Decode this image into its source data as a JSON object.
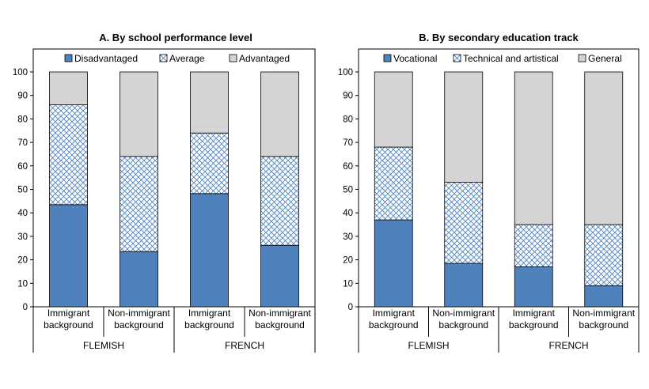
{
  "colors": {
    "vocational_or_disadvantaged": "#4f81bd",
    "pattern_blue": "#4f81bd",
    "grey": "#d4d4d4",
    "frame": "#000000"
  },
  "chart_data": [
    {
      "type": "bar",
      "stacked": true,
      "title": "A. By school performance level",
      "ylim": [
        0,
        100
      ],
      "yticks": [
        "0",
        "10",
        "20",
        "30",
        "40",
        "50",
        "60",
        "70",
        "80",
        "90",
        "100"
      ],
      "legend_position": "top-inside",
      "categories": [
        "Immigrant background",
        "Non-immigrant background",
        "Immigrant background",
        "Non-immigrant background"
      ],
      "category_lines": [
        [
          "Immigrant",
          "background"
        ],
        [
          "Non-immigrant",
          "background"
        ],
        [
          "Immigrant",
          "background"
        ],
        [
          "Non-immigrant",
          "background"
        ]
      ],
      "groups": [
        "FLEMISH",
        "FRENCH"
      ],
      "series": [
        {
          "name": "Disadvantaged",
          "fill": "solid",
          "values": [
            43.5,
            23.5,
            48.2,
            26.2
          ]
        },
        {
          "name": "Average",
          "fill": "pattern",
          "values": [
            42.5,
            40.5,
            25.8,
            37.8
          ]
        },
        {
          "name": "Advantaged",
          "fill": "grey",
          "values": [
            14.0,
            36.0,
            26.0,
            36.0
          ]
        }
      ]
    },
    {
      "type": "bar",
      "stacked": true,
      "title": "B. By secondary education track",
      "ylim": [
        0,
        100
      ],
      "yticks": [
        "0",
        "10",
        "20",
        "30",
        "40",
        "50",
        "60",
        "70",
        "80",
        "90",
        "100"
      ],
      "legend_position": "top-inside",
      "categories": [
        "Immigrant background",
        "Non-immigrant background",
        "Immigrant background",
        "Non-immigrant background"
      ],
      "category_lines": [
        [
          "Immigrant",
          "background"
        ],
        [
          "Non-immigrant",
          "background"
        ],
        [
          "Immigrant",
          "background"
        ],
        [
          "Non-immigrant",
          "background"
        ]
      ],
      "groups": [
        "FLEMISH",
        "FRENCH"
      ],
      "series": [
        {
          "name": "Vocational",
          "fill": "solid",
          "values": [
            37.0,
            18.5,
            17.0,
            9.0
          ]
        },
        {
          "name": "Technical and artistical",
          "fill": "pattern",
          "values": [
            31.0,
            34.5,
            18.0,
            26.0
          ]
        },
        {
          "name": "General",
          "fill": "grey",
          "values": [
            32.0,
            47.0,
            65.0,
            65.0
          ]
        }
      ]
    }
  ]
}
